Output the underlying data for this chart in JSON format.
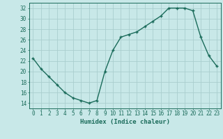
{
  "x": [
    0,
    1,
    2,
    3,
    4,
    5,
    6,
    7,
    8,
    9,
    10,
    11,
    12,
    13,
    14,
    15,
    16,
    17,
    18,
    19,
    20,
    21,
    22,
    23
  ],
  "y": [
    22.5,
    20.5,
    19.0,
    17.5,
    16.0,
    15.0,
    14.5,
    14.0,
    14.5,
    20.0,
    24.0,
    26.5,
    27.0,
    27.5,
    28.5,
    29.5,
    30.5,
    32.0,
    32.0,
    32.0,
    31.5,
    26.5,
    23.0,
    21.0
  ],
  "line_color": "#1a6b5a",
  "marker": "+",
  "marker_size": 3.5,
  "bg_color": "#c8e8e8",
  "grid_color": "#aacece",
  "xlabel": "Humidex (Indice chaleur)",
  "xlim": [
    -0.5,
    23.5
  ],
  "ylim": [
    13,
    33
  ],
  "yticks": [
    14,
    16,
    18,
    20,
    22,
    24,
    26,
    28,
    30,
    32
  ],
  "xticks": [
    0,
    1,
    2,
    3,
    4,
    5,
    6,
    7,
    8,
    9,
    10,
    11,
    12,
    13,
    14,
    15,
    16,
    17,
    18,
    19,
    20,
    21,
    22,
    23
  ],
  "tick_fontsize": 5.5,
  "label_fontsize": 6.5,
  "line_width": 1.0
}
